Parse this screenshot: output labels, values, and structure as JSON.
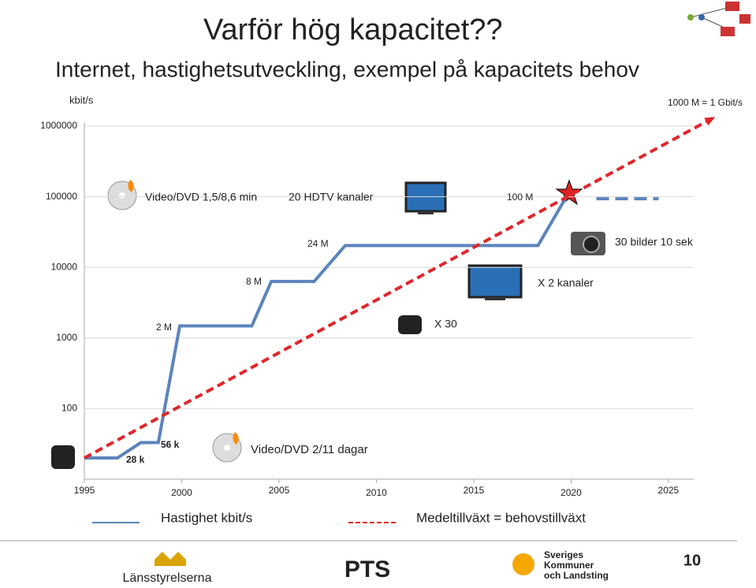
{
  "slide_title": "Varför hög kapacitet??",
  "chart_data": {
    "type": "line",
    "title": "Internet, hastighetsutveckling, exempel på kapacitets behov",
    "y_label": "kbit/s",
    "log_scale_y": true,
    "grid": true,
    "xlim": [
      1995,
      2026.3
    ],
    "xticks": [
      1995,
      2000,
      2005,
      2010,
      2015,
      2020,
      2025
    ],
    "ylim": [
      10,
      1000000
    ],
    "yticks": [
      100,
      1000,
      10000,
      100000,
      1000000
    ],
    "series": [
      {
        "name": "Hastighet kbit/s",
        "color": "#5b84bd",
        "dashed": false,
        "x": [
          1995,
          1996.7,
          1997.9,
          1998.8,
          1999.9,
          2003.6,
          2004.6,
          2006.8,
          2008.4,
          2018.3,
          2019.7
        ],
        "values": [
          20,
          20,
          33,
          33,
          1480,
          1480,
          6300,
          6300,
          20400,
          20400,
          93600
        ]
      },
      {
        "name": "Medeltillväxt = behovstillväxt",
        "color": "#e0262b",
        "dashed": true,
        "x": [
          1995,
          2027.4
        ],
        "values": [
          20,
          1350000
        ]
      },
      {
        "color": "#5b84bd",
        "dashed": true,
        "x": [
          2021.3,
          2024.5
        ],
        "values": [
          93600,
          93600
        ]
      }
    ],
    "annotations": [
      "1000 M = 1 Gbit/s",
      "Video/DVD 1,5/8,6 min",
      "20 HDTV kanaler",
      "100 M",
      "24 M",
      "30 bilder 10 sek",
      "8 M",
      "X 2 kanaler",
      "2 M",
      "X 30",
      "56 k",
      "28 k",
      "Video/DVD  2/11 dagar"
    ]
  },
  "footer": {
    "logos": [
      "Länsstyrelserna",
      "PTS",
      "Sveriges",
      "Kommuner",
      "och Landsting"
    ],
    "page_number": "10"
  }
}
